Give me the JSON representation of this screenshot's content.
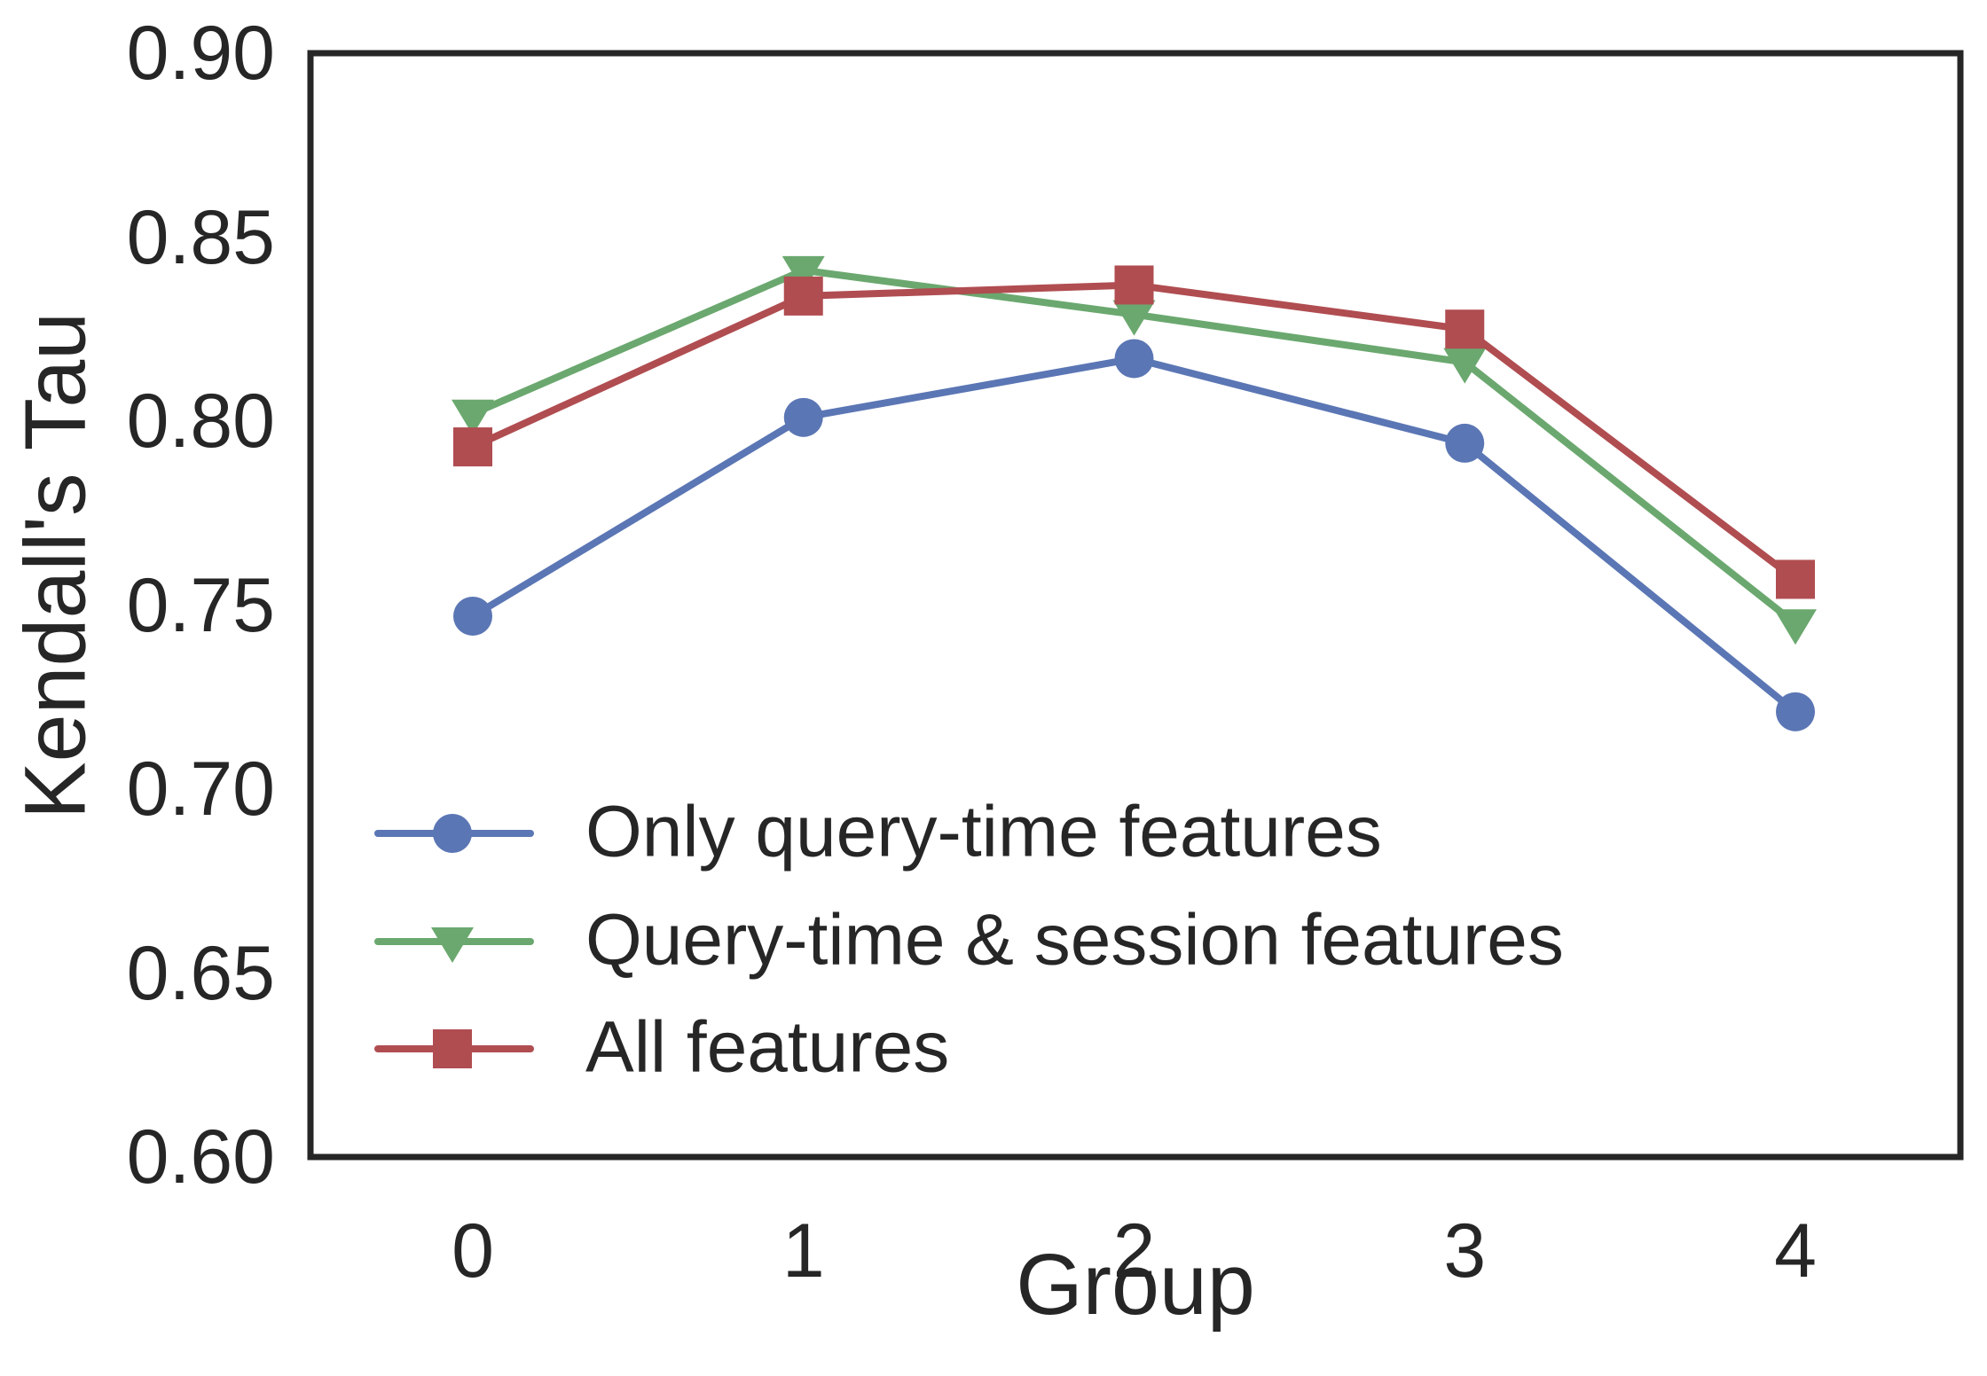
{
  "figure": {
    "background": "#ffffff",
    "text_color": "#262626",
    "spine_color": "#262626"
  },
  "chart_data": {
    "type": "line",
    "title": "",
    "xlabel": "Group",
    "ylabel": "Kendall's Tau",
    "x": [
      0,
      1,
      2,
      3,
      4
    ],
    "x_tick_labels": [
      "0",
      "1",
      "2",
      "3",
      "4"
    ],
    "y_tick_labels": [
      "0.90",
      "0.85",
      "0.80",
      "0.75",
      "0.70",
      "0.65",
      "0.60"
    ],
    "y_tick_values": [
      0.9,
      0.85,
      0.8,
      0.75,
      0.7,
      0.65,
      0.6
    ],
    "ylim": [
      0.6,
      0.9
    ],
    "grid": false,
    "legend_position": "lower-left-inside",
    "legend_frame": false,
    "series": [
      {
        "name": "Only query-time features",
        "marker": "circle",
        "color": "#5B76B4",
        "values": [
          0.747,
          0.801,
          0.817,
          0.794,
          0.721
        ]
      },
      {
        "name": "Query-time & session features",
        "marker": "triangle-down",
        "color": "#6BA86F",
        "values": [
          0.802,
          0.841,
          0.829,
          0.816,
          0.745
        ]
      },
      {
        "name": "All features",
        "marker": "square",
        "color": "#B04D51",
        "values": [
          0.793,
          0.834,
          0.837,
          0.825,
          0.757
        ]
      }
    ]
  }
}
